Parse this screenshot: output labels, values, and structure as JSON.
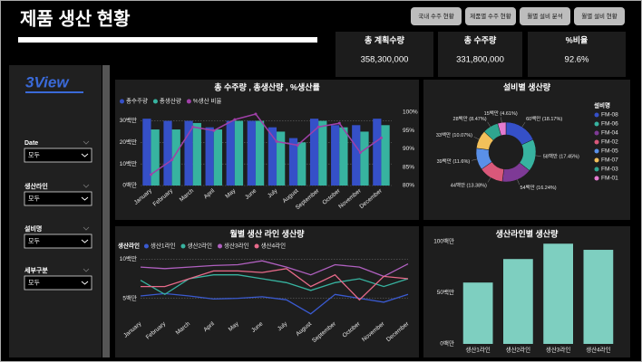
{
  "header": {
    "title": "제품 생산 현황"
  },
  "buttons": [
    "국내 수주 현황",
    "제품별 수주 현황",
    "월별 설비 분석",
    "월별 설비 현황"
  ],
  "kpis": [
    {
      "label": "총 계획수량",
      "value": "358,300,000"
    },
    {
      "label": "총 수주량",
      "value": "331,800,000"
    },
    {
      "label": "%비율",
      "value": "92.6%"
    }
  ],
  "logo": "3View",
  "filters": [
    {
      "label": "Date",
      "value": "모두"
    },
    {
      "label": "생산라인",
      "value": "모두"
    },
    {
      "label": "설비명",
      "value": "모두"
    },
    {
      "label": "세부구분",
      "value": "모두"
    }
  ],
  "chart_data": [
    {
      "type": "combo",
      "title": "총 수주량 , 총생산량 , %생산률",
      "categories": [
        "January",
        "February",
        "March",
        "April",
        "May",
        "June",
        "July",
        "August",
        "September",
        "October",
        "November",
        "December"
      ],
      "series": [
        {
          "name": "총수주량",
          "color": "#3550c8",
          "values": [
            31,
            30,
            30,
            27,
            30,
            30,
            27,
            22,
            31,
            28,
            28,
            31
          ]
        },
        {
          "name": "총생산량",
          "color": "#37b3a0",
          "values": [
            26,
            26,
            29,
            26,
            30,
            30,
            25,
            20,
            30,
            27,
            25,
            28
          ]
        },
        {
          "name": "%생산 비율",
          "color": "#a040a8",
          "axis": "y2",
          "values": [
            83,
            87,
            96,
            95,
            98,
            99.5,
            92,
            91,
            96,
            97,
            89,
            93
          ]
        }
      ],
      "ylim": [
        0,
        34
      ],
      "yticks": [
        {
          "value": 0,
          "label": "0백만"
        },
        {
          "value": 10,
          "label": "10백만"
        },
        {
          "value": 20,
          "label": "20백만"
        },
        {
          "value": 30,
          "label": "30백만"
        }
      ],
      "y2lim": [
        80,
        100
      ],
      "y2ticks": [
        {
          "value": 80,
          "label": "80%"
        },
        {
          "value": 85,
          "label": "85%"
        },
        {
          "value": 90,
          "label": "90%"
        },
        {
          "value": 95,
          "label": "95%"
        },
        {
          "value": 100,
          "label": "100%"
        }
      ],
      "grid": true
    },
    {
      "type": "donut",
      "title": "설비별 생산량",
      "legend_title": "설비명",
      "categories": [
        "FM-08",
        "FM-06",
        "FM-04",
        "FM-02",
        "FM-05",
        "FM-07",
        "FM-03",
        "FM-01"
      ],
      "values": [
        60,
        58,
        54,
        44,
        39,
        33,
        28,
        15
      ],
      "value_labels": [
        "60백만 (18.17%)",
        "58백만 (17.45%)",
        "54백만 (16.24%)",
        "44백만 (13.38%)",
        "39백만 (11.6%)",
        "33백만 (10.07%)",
        "28백만 (8.47%)",
        "15백만 (4.61%)"
      ],
      "colors": [
        "#3550c8",
        "#37b3a0",
        "#7e3a96",
        "#d9587a",
        "#5a90e8",
        "#f2c05a",
        "#2fa58f",
        "#e47bd0"
      ]
    },
    {
      "type": "line",
      "title": "월별 생산 라인 생산량",
      "legend_title": "생산라인",
      "categories": [
        "January",
        "February",
        "March",
        "April",
        "May",
        "June",
        "July",
        "August",
        "September",
        "October",
        "November",
        "December"
      ],
      "series": [
        {
          "name": "생산1라인",
          "color": "#3a5ad0",
          "values": [
            5.3,
            5.6,
            5.3,
            4.9,
            5.0,
            5.2,
            4.8,
            3.0,
            5.5,
            5.0,
            4.5,
            5.5
          ]
        },
        {
          "name": "생산2라인",
          "color": "#37b3a0",
          "values": [
            7.3,
            5.5,
            7.5,
            8.0,
            8.0,
            7.5,
            7.0,
            6.0,
            7.0,
            7.5,
            6.5,
            7.5
          ]
        },
        {
          "name": "생산3라인",
          "color": "#b060c0",
          "values": [
            9.0,
            8.8,
            9.0,
            9.2,
            9.3,
            9.8,
            9.0,
            8.0,
            9.3,
            9.0,
            7.8,
            9.4
          ]
        },
        {
          "name": "생산4라인",
          "color": "#e86a8a",
          "values": [
            6.5,
            6.5,
            7.5,
            8.5,
            8.5,
            8.3,
            8.8,
            6.5,
            8.0,
            4.8,
            7.8,
            7.5
          ]
        }
      ],
      "ylim": [
        2.4,
        10.4
      ],
      "yticks": [
        {
          "value": 5,
          "label": "5백만"
        },
        {
          "value": 10,
          "label": "10백만"
        }
      ],
      "grid": true
    },
    {
      "type": "bar",
      "title": "생산라인별 생산량",
      "categories": [
        "생산1라인",
        "생산2라인",
        "생산3라인",
        "생산4라인"
      ],
      "values": [
        60,
        83,
        98,
        92
      ],
      "color": "#7ecfc0",
      "ylim": [
        0,
        100
      ],
      "yticks": [
        {
          "value": 0,
          "label": "0백만"
        },
        {
          "value": 50,
          "label": "50백만"
        },
        {
          "value": 100,
          "label": "100백만"
        }
      ]
    }
  ]
}
